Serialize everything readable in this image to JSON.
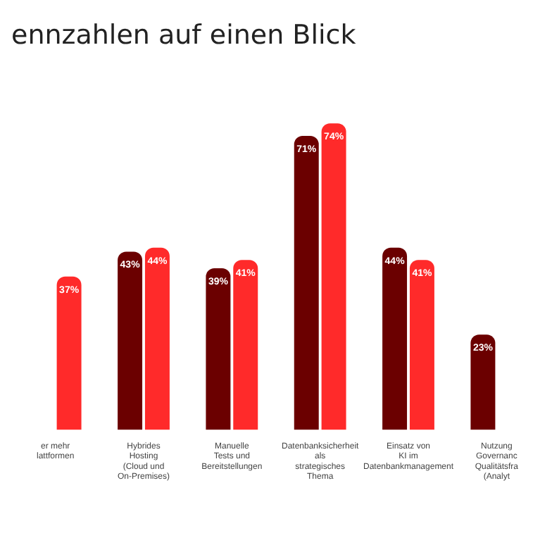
{
  "chart_data": {
    "type": "bar",
    "title": "ennzahlen auf einen Blick",
    "categories": [
      "er mehr lattformen",
      "Hybrides Hosting (Cloud und On-Premises)",
      "Manuelle Tests und Bereitstellungen",
      "Datenbanksicherheit als strategisches Thema",
      "Einsatz von KI im Datenbankmanagement",
      "Nutzung Governanc Qualitätsfra (Analyt"
    ],
    "series": [
      {
        "color": "#6b0000",
        "values": [
          null,
          43,
          39,
          71,
          44,
          23
        ],
        "value_labels": [
          null,
          "43%",
          "39%",
          "71%",
          "44%",
          "23%"
        ]
      },
      {
        "color": "#ff2a2a",
        "values": [
          37,
          44,
          41,
          74,
          41,
          null
        ],
        "value_labels": [
          "37%",
          "44%",
          "41%",
          "74%",
          "41%",
          null
        ]
      }
    ],
    "grid": false,
    "legend": false,
    "tick_labels": "x"
  }
}
